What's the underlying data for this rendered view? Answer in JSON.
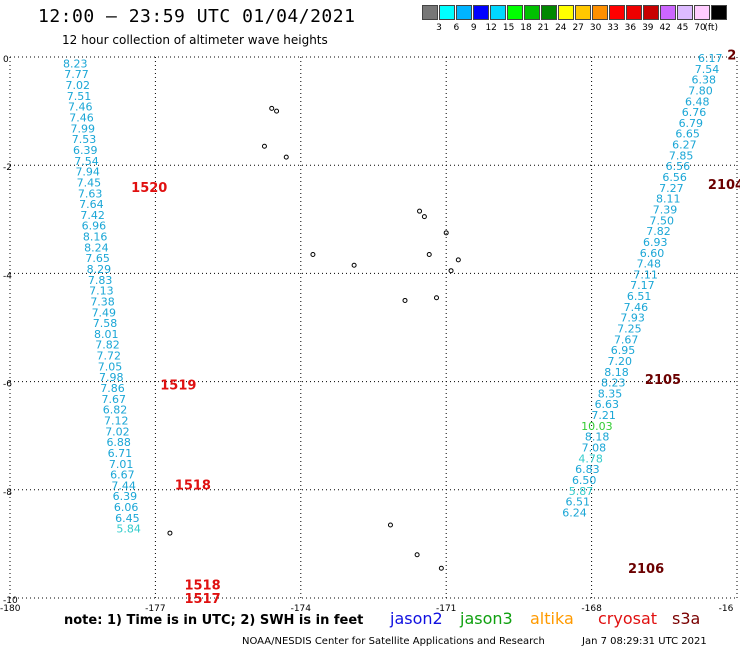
{
  "title": "12:00 — 23:59 UTC 01/04/2021",
  "subtitle": "12 hour collection of altimeter wave heights",
  "color_scale": {
    "colors": [
      "#777777",
      "#00ffff",
      "#00b4ff",
      "#0000ff",
      "#00d8ff",
      "#00ff00",
      "#00c000",
      "#008800",
      "#ffff00",
      "#ffc800",
      "#ff9000",
      "#ff0000",
      "#ee0000",
      "#c80000",
      "#cc66ff",
      "#ddbbff",
      "#ffccff",
      "#000000"
    ],
    "ticks": [
      "3",
      "6",
      "9",
      "12",
      "15",
      "18",
      "21",
      "24",
      "27",
      "30",
      "33",
      "36",
      "39",
      "42",
      "45",
      "70"
    ],
    "unit": "(ft)"
  },
  "map": {
    "x_ticks": [
      "-180",
      "-177",
      "-174",
      "-171",
      "-168",
      "-16"
    ],
    "y_ticks": [
      "0",
      "-2",
      "-4",
      "-6",
      "-8",
      "-10"
    ],
    "lon_range": [
      -180,
      -165
    ],
    "lat_range": [
      0,
      -10
    ]
  },
  "tracks": [
    {
      "id": "left",
      "color": "#1aa6d6",
      "start_lat": -0.1,
      "lat_step": -0.2,
      "lon_start": -178.4,
      "lon_end": -177.3,
      "values": [
        "8.23",
        "7.77",
        "7.02",
        "7.51",
        "7.46",
        "7.46",
        "7.99",
        "7.53",
        "6.39",
        "7.54",
        "7.94",
        "7.45",
        "7.63",
        "7.64",
        "7.42",
        "6.96",
        "8.16",
        "8.24",
        "7.65",
        "8.29",
        "7.83",
        "7.13",
        "7.38",
        "7.49",
        "7.58",
        "8.01",
        "7.82",
        "7.72",
        "7.05",
        "7.98",
        "7.86",
        "7.67",
        "6.82",
        "7.12",
        "7.02",
        "6.88",
        "6.71",
        "7.01",
        "6.67",
        "7.44",
        "6.39",
        "6.06",
        "6.45",
        "5.84"
      ]
    },
    {
      "id": "right",
      "color": "#1aa6d6",
      "start_lat": 0.0,
      "lat_step": -0.2,
      "lon_start": -165.3,
      "lon_end": -168.1,
      "values": [
        "6.17",
        "7.54",
        "6.38",
        "7.80",
        "6.48",
        "6.76",
        "6.79",
        "6.65",
        "6.27",
        "7.85",
        "6.56",
        "6.56",
        "7.27",
        "8.11",
        "7.39",
        "7.50",
        "7.82",
        "6.93",
        "6.60",
        "7.48",
        "7.11",
        "7.17",
        "6.51",
        "7.46",
        "7.93",
        "7.25",
        "7.67",
        "6.95",
        "7.20",
        "8.18",
        "8.23",
        "8.35",
        "6.63",
        "7.21",
        "10.03",
        "8.18",
        "7.08",
        "4.78",
        "6.83",
        "6.50",
        "5.87",
        "6.51",
        "6.24"
      ]
    }
  ],
  "pass_times": [
    {
      "label": "1520",
      "color": "#e01010",
      "lon": -177.5,
      "lat": -2.4
    },
    {
      "label": "1519",
      "color": "#e01010",
      "lon": -176.9,
      "lat": -6.05
    },
    {
      "label": "1518",
      "color": "#e01010",
      "lon": -176.6,
      "lat": -7.9
    },
    {
      "label": "1518",
      "color": "#e01010",
      "lon": -176.4,
      "lat": -9.75
    },
    {
      "label": "1517",
      "color": "#e01010",
      "lon": -176.4,
      "lat": -10.0
    },
    {
      "label": "2",
      "color": "#6b0000",
      "lon": -165.2,
      "lat": 0.05
    },
    {
      "label": "2104",
      "color": "#6b0000",
      "lon": -165.6,
      "lat": -2.35
    },
    {
      "label": "2105",
      "color": "#6b0000",
      "lon": -166.9,
      "lat": -5.95
    },
    {
      "label": "2106",
      "color": "#6b0000",
      "lon": -167.25,
      "lat": -9.45
    }
  ],
  "islands": [
    {
      "lon": -174.6,
      "lat": -0.95
    },
    {
      "lon": -174.5,
      "lat": -1.0
    },
    {
      "lon": -174.75,
      "lat": -1.65
    },
    {
      "lon": -174.3,
      "lat": -1.85
    },
    {
      "lon": -171.55,
      "lat": -2.85
    },
    {
      "lon": -171.45,
      "lat": -2.95
    },
    {
      "lon": -171.0,
      "lat": -3.25
    },
    {
      "lon": -171.35,
      "lat": -3.65
    },
    {
      "lon": -170.75,
      "lat": -3.75
    },
    {
      "lon": -170.9,
      "lat": -3.95
    },
    {
      "lon": -173.75,
      "lat": -3.65
    },
    {
      "lon": -172.9,
      "lat": -3.85
    },
    {
      "lon": -171.85,
      "lat": -4.5
    },
    {
      "lon": -171.2,
      "lat": -4.45
    },
    {
      "lon": -172.15,
      "lat": -8.65
    },
    {
      "lon": -171.6,
      "lat": -9.2
    },
    {
      "lon": -171.1,
      "lat": -9.45
    },
    {
      "lon": -176.7,
      "lat": -8.8
    }
  ],
  "footer": {
    "note": "note:  1) Time is in UTC;  2) SWH is in feet",
    "missions": [
      {
        "label": "jason2",
        "color": "#1010e0"
      },
      {
        "label": "jason3",
        "color": "#10a010"
      },
      {
        "label": "altika",
        "color": "#ff9a00"
      },
      {
        "label": "cryosat",
        "color": "#e01010"
      },
      {
        "label": "s3a",
        "color": "#7a0000"
      }
    ],
    "credit": "NOAA/NESDIS Center for Satellite Applications and Research",
    "timestamp": "Jan  7 08:29:31 UTC 2021"
  }
}
